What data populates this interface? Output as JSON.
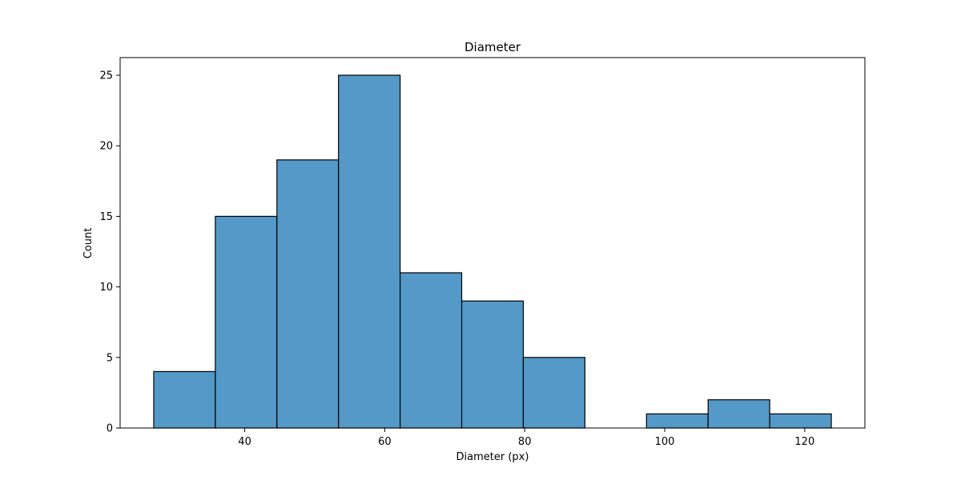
{
  "chart_data": {
    "type": "bar",
    "title": "Diameter",
    "xlabel": "Diameter (px)",
    "ylabel": "Count",
    "bins": [
      {
        "start": 27.0,
        "end": 35.8,
        "count": 4
      },
      {
        "start": 35.8,
        "end": 44.6,
        "count": 15
      },
      {
        "start": 44.6,
        "end": 53.4,
        "count": 19
      },
      {
        "start": 53.4,
        "end": 62.2,
        "count": 25
      },
      {
        "start": 62.2,
        "end": 71.0,
        "count": 11
      },
      {
        "start": 71.0,
        "end": 79.8,
        "count": 9
      },
      {
        "start": 79.8,
        "end": 88.6,
        "count": 5
      },
      {
        "start": 88.6,
        "end": 97.4,
        "count": 0
      },
      {
        "start": 97.4,
        "end": 106.2,
        "count": 1
      },
      {
        "start": 106.2,
        "end": 115.0,
        "count": 2
      },
      {
        "start": 115.0,
        "end": 123.8,
        "count": 1
      }
    ],
    "xlim": [
      22.2,
      128.6
    ],
    "ylim": [
      0,
      26.25
    ],
    "xticks": [
      40,
      60,
      80,
      100,
      120
    ],
    "yticks": [
      0,
      5,
      10,
      15,
      20,
      25
    ],
    "bar_color": "#5499c7",
    "edge_color": "#000000",
    "grid": false,
    "legend": "none"
  }
}
